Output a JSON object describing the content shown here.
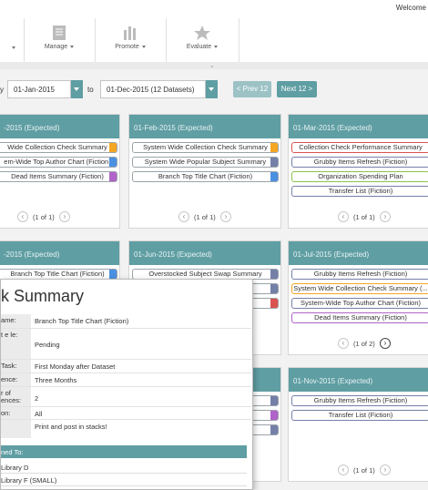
{
  "header": {
    "welcome": "Welcome"
  },
  "toolbar": {
    "manage": "Manage",
    "promote": "Promote",
    "evaluate": "Evaluate"
  },
  "filters": {
    "start_date": "01-Jan-2015",
    "to": "to",
    "end_date": "01-Dec-2015 (12 Datasets)",
    "prev": "< Prev 12",
    "next": "Next 12 >"
  },
  "panels": [
    {
      "title": "-2015 (Expected)",
      "items": [
        "Wide Collection Check Summary",
        "em-Wide Top Author Chart (Fiction)",
        "Dead Items Summary (Fiction)"
      ],
      "pager": "(1 of 1)"
    },
    {
      "title": "01-Feb-2015 (Expected)",
      "items": [
        "System Wide Collection Check Summary",
        "System Wide Popular Subject Summary",
        "Branch Top Title Chart (Fiction)"
      ],
      "pager": "(1 of 1)"
    },
    {
      "title": "01-Mar-2015 (Expected)",
      "items": [
        "Collection Check Performance Summary",
        "Grubby Items Refresh (Fiction)",
        "Organization Spending Plan",
        "Transfer List (Fiction)"
      ],
      "pager": "(1 of 1)"
    },
    {
      "title": "-2015 (Expected)",
      "items": [
        "Branch Top Title Chart (Fiction)"
      ]
    },
    {
      "title": "01-Jun-2015 (Expected)",
      "items": [
        "Overstocked Subject Swap Summary"
      ]
    },
    {
      "title": "01-Jul-2015 (Expected)",
      "items": [
        "Grubby Items Refresh (Fiction)",
        "System Wide Collection Check Summary (...",
        "System-Wide Top Author Chart (Fiction)",
        "Dead Items Summary (Fiction)"
      ],
      "pager": "(1 of 2)"
    },
    {
      "title": "01-Nov-2015 (Expected)",
      "items": [
        "Grubby Items Refresh (Fiction)",
        "Transfer List (Fiction)"
      ],
      "pager": "(1 of 1)"
    }
  ],
  "modal": {
    "title": "k Summary",
    "rows": [
      {
        "key": "ame:",
        "value": "Branch Top Title Chart (Fiction)"
      },
      {
        "key": "t e le:",
        "value": "Pending"
      },
      {
        "key": "Task:",
        "value": "First Monday after Dataset"
      },
      {
        "key": "ence:",
        "value": "Three Months"
      },
      {
        "key": "r of ences:",
        "value": "2"
      },
      {
        "key": "on:",
        "value": "All"
      },
      {
        "key": "",
        "value": "Print and post in stacks!"
      }
    ],
    "assigned_header": "ned To:",
    "assigned": [
      "Library D",
      "Library F (SMALL)"
    ]
  },
  "colors": {
    "teal": "#5f9ea3",
    "orange": "#f5a623",
    "blue": "#4a90e2",
    "purple": "#b063c9",
    "red": "#d9534f",
    "slate": "#7480a8"
  }
}
